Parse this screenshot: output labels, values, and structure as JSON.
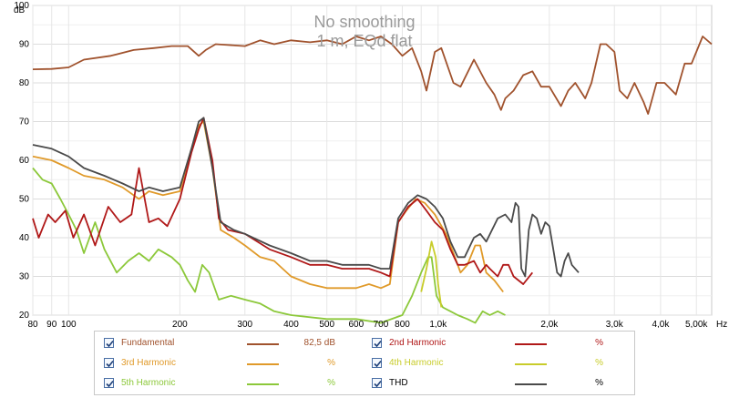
{
  "chart_data": {
    "type": "line",
    "title": "No smoothing",
    "subtitle": "1 m, EQd flat",
    "xscale": "log",
    "xlim": [
      80,
      5500
    ],
    "ylim": [
      20,
      100
    ],
    "y_unit": "dB",
    "x_unit": "Hz",
    "yticks": [
      20,
      30,
      40,
      50,
      60,
      70,
      80,
      90,
      100
    ],
    "xticks": [
      {
        "v": 80,
        "label": "80"
      },
      {
        "v": 90,
        "label": "90"
      },
      {
        "v": 100,
        "label": "100"
      },
      {
        "v": 200,
        "label": "200"
      },
      {
        "v": 300,
        "label": "300"
      },
      {
        "v": 400,
        "label": "400"
      },
      {
        "v": 500,
        "label": "500"
      },
      {
        "v": 600,
        "label": "600"
      },
      {
        "v": 700,
        "label": "700"
      },
      {
        "v": 800,
        "label": "800"
      },
      {
        "v": 1000,
        "label": "1,0k"
      },
      {
        "v": 2000,
        "label": "2,0k"
      },
      {
        "v": 3000,
        "label": "3,0k"
      },
      {
        "v": 4000,
        "label": "4,0k"
      },
      {
        "v": 5000,
        "label": "5,00k"
      }
    ],
    "grid": true,
    "series": [
      {
        "name": "Fundamental",
        "color": "#a0522d",
        "value": "82,5 dB",
        "points": [
          [
            80,
            83.5
          ],
          [
            90,
            83.6
          ],
          [
            100,
            84
          ],
          [
            110,
            86
          ],
          [
            130,
            87
          ],
          [
            150,
            88.5
          ],
          [
            170,
            89
          ],
          [
            190,
            89.5
          ],
          [
            210,
            89.5
          ],
          [
            225,
            87
          ],
          [
            235,
            88.5
          ],
          [
            250,
            90
          ],
          [
            270,
            89.8
          ],
          [
            300,
            89.5
          ],
          [
            330,
            91
          ],
          [
            360,
            90
          ],
          [
            400,
            91
          ],
          [
            450,
            90.5
          ],
          [
            500,
            91
          ],
          [
            550,
            90
          ],
          [
            600,
            92
          ],
          [
            650,
            91
          ],
          [
            700,
            92
          ],
          [
            750,
            90
          ],
          [
            800,
            87
          ],
          [
            850,
            89
          ],
          [
            900,
            83
          ],
          [
            930,
            78
          ],
          [
            980,
            88
          ],
          [
            1020,
            89
          ],
          [
            1100,
            80
          ],
          [
            1150,
            79
          ],
          [
            1250,
            86
          ],
          [
            1350,
            80
          ],
          [
            1420,
            77
          ],
          [
            1480,
            73
          ],
          [
            1520,
            76
          ],
          [
            1600,
            78
          ],
          [
            1700,
            82
          ],
          [
            1800,
            83
          ],
          [
            1900,
            79
          ],
          [
            2000,
            79
          ],
          [
            2150,
            74
          ],
          [
            2250,
            78
          ],
          [
            2350,
            80
          ],
          [
            2500,
            76
          ],
          [
            2600,
            80
          ],
          [
            2750,
            90
          ],
          [
            2850,
            90
          ],
          [
            3000,
            88
          ],
          [
            3100,
            78
          ],
          [
            3250,
            76
          ],
          [
            3400,
            80
          ],
          [
            3600,
            75
          ],
          [
            3700,
            72
          ],
          [
            3900,
            80
          ],
          [
            4100,
            80
          ],
          [
            4400,
            77
          ],
          [
            4650,
            85
          ],
          [
            4850,
            85
          ],
          [
            5200,
            92
          ],
          [
            5500,
            90
          ]
        ]
      },
      {
        "name": "2nd Harmonic",
        "color": "#b01818",
        "value": "%",
        "points": [
          [
            80,
            45
          ],
          [
            83,
            40
          ],
          [
            88,
            46
          ],
          [
            92,
            44
          ],
          [
            98,
            47
          ],
          [
            103,
            40
          ],
          [
            110,
            46
          ],
          [
            118,
            38
          ],
          [
            128,
            48
          ],
          [
            138,
            44
          ],
          [
            148,
            46
          ],
          [
            155,
            58
          ],
          [
            165,
            44
          ],
          [
            175,
            45
          ],
          [
            185,
            43
          ],
          [
            200,
            50
          ],
          [
            215,
            62
          ],
          [
            225,
            68
          ],
          [
            232,
            71
          ],
          [
            245,
            60
          ],
          [
            255,
            45
          ],
          [
            270,
            42
          ],
          [
            300,
            41
          ],
          [
            350,
            37
          ],
          [
            400,
            35
          ],
          [
            450,
            33
          ],
          [
            500,
            33
          ],
          [
            550,
            32
          ],
          [
            600,
            32
          ],
          [
            650,
            32
          ],
          [
            700,
            31
          ],
          [
            740,
            30
          ],
          [
            780,
            44
          ],
          [
            830,
            48
          ],
          [
            880,
            50
          ],
          [
            930,
            47
          ],
          [
            980,
            44
          ],
          [
            1030,
            42
          ],
          [
            1080,
            37
          ],
          [
            1130,
            33
          ],
          [
            1180,
            33
          ],
          [
            1250,
            34
          ],
          [
            1300,
            31
          ],
          [
            1350,
            33
          ],
          [
            1380,
            32
          ],
          [
            1450,
            30
          ],
          [
            1500,
            33
          ],
          [
            1550,
            33
          ],
          [
            1600,
            30
          ],
          [
            1700,
            28
          ],
          [
            1800,
            31
          ]
        ]
      },
      {
        "name": "3rd Harmonic",
        "color": "#e09a2a",
        "value": "%",
        "points": [
          [
            80,
            61
          ],
          [
            90,
            60
          ],
          [
            100,
            58
          ],
          [
            110,
            56
          ],
          [
            125,
            55
          ],
          [
            140,
            53
          ],
          [
            155,
            50
          ],
          [
            165,
            52
          ],
          [
            180,
            51
          ],
          [
            200,
            52
          ],
          [
            215,
            63
          ],
          [
            225,
            69
          ],
          [
            232,
            70
          ],
          [
            245,
            58
          ],
          [
            258,
            42
          ],
          [
            280,
            40
          ],
          [
            300,
            38
          ],
          [
            330,
            35
          ],
          [
            360,
            34
          ],
          [
            400,
            30
          ],
          [
            450,
            28
          ],
          [
            500,
            27
          ],
          [
            550,
            27
          ],
          [
            600,
            27
          ],
          [
            650,
            28
          ],
          [
            700,
            27
          ],
          [
            740,
            28
          ],
          [
            780,
            44
          ],
          [
            820,
            47
          ],
          [
            870,
            50
          ],
          [
            920,
            49
          ],
          [
            980,
            46
          ],
          [
            1050,
            41
          ],
          [
            1100,
            36
          ],
          [
            1150,
            31
          ],
          [
            1200,
            33
          ],
          [
            1260,
            38
          ],
          [
            1300,
            38
          ],
          [
            1350,
            31
          ],
          [
            1420,
            29
          ],
          [
            1500,
            26
          ]
        ]
      },
      {
        "name": "4th Harmonic",
        "color": "#c8cc2a",
        "value": "%",
        "points": [
          [
            900,
            26
          ],
          [
            930,
            32
          ],
          [
            960,
            39
          ],
          [
            985,
            35
          ],
          [
            1000,
            28
          ],
          [
            1020,
            22
          ]
        ]
      },
      {
        "name": "5th Harmonic",
        "color": "#8cc83a",
        "value": "%",
        "points": [
          [
            80,
            58
          ],
          [
            85,
            55
          ],
          [
            90,
            54
          ],
          [
            95,
            50
          ],
          [
            100,
            46
          ],
          [
            105,
            42
          ],
          [
            110,
            36
          ],
          [
            118,
            44
          ],
          [
            125,
            37
          ],
          [
            135,
            31
          ],
          [
            145,
            34
          ],
          [
            155,
            36
          ],
          [
            165,
            34
          ],
          [
            175,
            37
          ],
          [
            190,
            35
          ],
          [
            200,
            33
          ],
          [
            210,
            29
          ],
          [
            220,
            26
          ],
          [
            230,
            33
          ],
          [
            240,
            31
          ],
          [
            255,
            24
          ],
          [
            275,
            25
          ],
          [
            300,
            24
          ],
          [
            330,
            23
          ],
          [
            360,
            21
          ],
          [
            400,
            20
          ],
          [
            500,
            19
          ],
          [
            600,
            19
          ],
          [
            700,
            18
          ],
          [
            800,
            20
          ],
          [
            850,
            25
          ],
          [
            900,
            31
          ],
          [
            940,
            35
          ],
          [
            960,
            35
          ],
          [
            990,
            25
          ],
          [
            1030,
            22
          ],
          [
            1080,
            21
          ],
          [
            1130,
            20
          ],
          [
            1200,
            19
          ],
          [
            1260,
            18
          ],
          [
            1320,
            21
          ],
          [
            1380,
            20
          ],
          [
            1450,
            21
          ],
          [
            1520,
            20
          ]
        ]
      },
      {
        "name": "THD",
        "color": "#4a4a4a",
        "value": "%",
        "points": [
          [
            80,
            64
          ],
          [
            90,
            63
          ],
          [
            100,
            61
          ],
          [
            110,
            58
          ],
          [
            125,
            56
          ],
          [
            140,
            54
          ],
          [
            155,
            52
          ],
          [
            165,
            53
          ],
          [
            180,
            52
          ],
          [
            200,
            53
          ],
          [
            215,
            63
          ],
          [
            225,
            70
          ],
          [
            232,
            71
          ],
          [
            245,
            58
          ],
          [
            258,
            44
          ],
          [
            280,
            42
          ],
          [
            300,
            41
          ],
          [
            350,
            38
          ],
          [
            400,
            36
          ],
          [
            450,
            34
          ],
          [
            500,
            34
          ],
          [
            550,
            33
          ],
          [
            600,
            33
          ],
          [
            650,
            33
          ],
          [
            700,
            32
          ],
          [
            740,
            32
          ],
          [
            780,
            45
          ],
          [
            830,
            49
          ],
          [
            880,
            51
          ],
          [
            930,
            50
          ],
          [
            980,
            48
          ],
          [
            1030,
            45
          ],
          [
            1080,
            39
          ],
          [
            1130,
            35
          ],
          [
            1180,
            35
          ],
          [
            1250,
            40
          ],
          [
            1300,
            41
          ],
          [
            1350,
            39
          ],
          [
            1450,
            45
          ],
          [
            1520,
            46
          ],
          [
            1580,
            44
          ],
          [
            1620,
            49
          ],
          [
            1650,
            48
          ],
          [
            1680,
            32
          ],
          [
            1720,
            30
          ],
          [
            1760,
            42
          ],
          [
            1800,
            46
          ],
          [
            1850,
            45
          ],
          [
            1900,
            41
          ],
          [
            1950,
            44
          ],
          [
            2000,
            43
          ],
          [
            2050,
            37
          ],
          [
            2100,
            31
          ],
          [
            2150,
            30
          ],
          [
            2200,
            34
          ],
          [
            2250,
            36
          ],
          [
            2300,
            33
          ],
          [
            2400,
            31
          ]
        ]
      }
    ]
  },
  "legend": {
    "items": [
      {
        "label": "Fundamental",
        "value": "82,5 dB",
        "color": "#a0522d",
        "label_color": "#a0522d",
        "checked": true
      },
      {
        "label": "2nd Harmonic",
        "value": "%",
        "color": "#b01818",
        "label_color": "#b01818",
        "checked": true
      },
      {
        "label": "3rd Harmonic",
        "value": "%",
        "color": "#e09a2a",
        "label_color": "#e09a2a",
        "checked": true
      },
      {
        "label": "4th Harmonic",
        "value": "%",
        "color": "#c8cc2a",
        "label_color": "#c8cc2a",
        "checked": true
      },
      {
        "label": "5th Harmonic",
        "value": "%",
        "color": "#8cc83a",
        "label_color": "#8cc83a",
        "checked": true
      },
      {
        "label": "THD",
        "value": "%",
        "color": "#4a4a4a",
        "label_color": "#000000",
        "checked": true
      }
    ]
  },
  "axis_text": {
    "y_unit": "dB",
    "x_unit": "Hz"
  }
}
